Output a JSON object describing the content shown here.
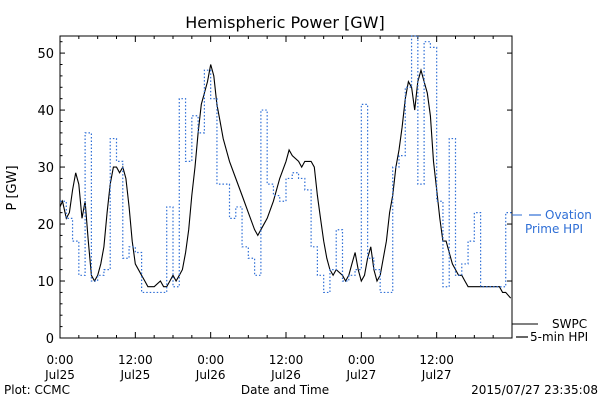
{
  "chart_data": {
    "type": "line",
    "title": "Hemispheric Power [GW]",
    "ylabel": "P [GW]",
    "xlabel": "Date and Time",
    "ylim": [
      0,
      53
    ],
    "xlim_hours": [
      0,
      72
    ],
    "yticks": [
      0,
      10,
      20,
      30,
      40,
      50
    ],
    "xticks": [
      {
        "hour": 0,
        "time": "0:00",
        "date": "Jul25"
      },
      {
        "hour": 12,
        "time": "12:00",
        "date": "Jul25"
      },
      {
        "hour": 24,
        "time": "0:00",
        "date": "Jul26"
      },
      {
        "hour": 36,
        "time": "12:00",
        "date": "Jul26"
      },
      {
        "hour": 48,
        "time": "0:00",
        "date": "Jul27"
      },
      {
        "hour": 60,
        "time": "12:00",
        "date": "Jul27"
      }
    ],
    "series": [
      {
        "name": "SWPC 5-min HPI",
        "legend_lines": [
          "SWPC",
          "5-min HPI"
        ],
        "color": "#000000",
        "style": "solid",
        "points": [
          [
            0,
            23
          ],
          [
            0.4,
            24
          ],
          [
            1,
            21
          ],
          [
            1.5,
            22
          ],
          [
            2,
            26
          ],
          [
            2.5,
            29
          ],
          [
            3,
            27
          ],
          [
            3.5,
            21
          ],
          [
            4,
            24
          ],
          [
            4.5,
            17
          ],
          [
            5,
            11
          ],
          [
            5.5,
            10
          ],
          [
            6,
            11
          ],
          [
            6.5,
            13
          ],
          [
            7,
            16
          ],
          [
            7.5,
            22
          ],
          [
            8,
            27
          ],
          [
            8.5,
            30
          ],
          [
            9,
            30
          ],
          [
            9.5,
            29
          ],
          [
            10,
            30
          ],
          [
            10.5,
            28
          ],
          [
            11,
            23
          ],
          [
            11.5,
            17
          ],
          [
            12,
            13
          ],
          [
            13,
            11
          ],
          [
            13.5,
            10
          ],
          [
            14,
            9
          ],
          [
            15,
            9
          ],
          [
            16,
            10
          ],
          [
            16.5,
            9
          ],
          [
            17,
            9
          ],
          [
            17.5,
            10
          ],
          [
            18,
            11
          ],
          [
            18.5,
            10
          ],
          [
            19,
            11
          ],
          [
            19.5,
            12
          ],
          [
            20,
            15
          ],
          [
            20.5,
            19
          ],
          [
            21,
            25
          ],
          [
            21.5,
            30
          ],
          [
            22,
            36
          ],
          [
            22.5,
            41
          ],
          [
            23,
            43
          ],
          [
            23.5,
            45
          ],
          [
            24,
            48
          ],
          [
            24.5,
            46
          ],
          [
            25,
            41
          ],
          [
            25.5,
            38
          ],
          [
            26,
            35
          ],
          [
            27,
            31
          ],
          [
            28,
            28
          ],
          [
            29,
            25
          ],
          [
            30,
            22
          ],
          [
            31,
            19
          ],
          [
            31.5,
            18
          ],
          [
            32,
            19
          ],
          [
            33,
            21
          ],
          [
            34,
            24
          ],
          [
            35,
            28
          ],
          [
            36,
            31
          ],
          [
            36.5,
            33
          ],
          [
            37,
            32
          ],
          [
            38,
            31
          ],
          [
            38.5,
            30
          ],
          [
            39,
            31
          ],
          [
            40,
            31
          ],
          [
            40.5,
            30
          ],
          [
            41,
            25
          ],
          [
            41.5,
            21
          ],
          [
            42,
            17
          ],
          [
            42.5,
            14
          ],
          [
            43,
            12
          ],
          [
            43.5,
            11
          ],
          [
            44,
            12
          ],
          [
            45,
            11
          ],
          [
            45.5,
            10
          ],
          [
            46,
            11
          ],
          [
            46.5,
            13
          ],
          [
            47,
            15
          ],
          [
            47.5,
            12
          ],
          [
            48,
            10
          ],
          [
            48.5,
            11
          ],
          [
            49,
            14
          ],
          [
            49.5,
            16
          ],
          [
            50,
            12
          ],
          [
            50.5,
            10
          ],
          [
            51,
            11
          ],
          [
            51.5,
            14
          ],
          [
            52,
            17
          ],
          [
            52.5,
            22
          ],
          [
            53,
            25
          ],
          [
            53.5,
            30
          ],
          [
            54,
            33
          ],
          [
            54.5,
            37
          ],
          [
            55,
            42
          ],
          [
            55.5,
            45
          ],
          [
            56,
            44
          ],
          [
            56.5,
            40
          ],
          [
            57,
            45
          ],
          [
            57.5,
            47
          ],
          [
            58,
            45
          ],
          [
            58.5,
            43
          ],
          [
            59,
            39
          ],
          [
            59.5,
            31
          ],
          [
            60,
            26
          ],
          [
            60.5,
            21
          ],
          [
            61,
            17
          ],
          [
            61.5,
            17
          ],
          [
            62,
            15
          ],
          [
            62.5,
            13
          ],
          [
            63,
            12
          ],
          [
            63.5,
            11
          ],
          [
            64,
            11
          ],
          [
            64.5,
            10
          ],
          [
            65,
            9
          ],
          [
            66,
            9
          ],
          [
            67,
            9
          ],
          [
            68,
            9
          ],
          [
            69,
            9
          ],
          [
            70,
            9
          ],
          [
            70.5,
            8
          ],
          [
            71,
            8
          ],
          [
            71.8,
            7
          ]
        ]
      },
      {
        "name": "Ovation Prime HPI",
        "legend_lines": [
          "Ovation",
          "Prime HPI"
        ],
        "color": "#2f6fd6",
        "style": "dotted-step",
        "points": [
          [
            0,
            24
          ],
          [
            1,
            21
          ],
          [
            2,
            17
          ],
          [
            3,
            11
          ],
          [
            4,
            36
          ],
          [
            5,
            10
          ],
          [
            6,
            11
          ],
          [
            7,
            12
          ],
          [
            8,
            35
          ],
          [
            9,
            31
          ],
          [
            10,
            14
          ],
          [
            11,
            16
          ],
          [
            12,
            15
          ],
          [
            13,
            8
          ],
          [
            14,
            8
          ],
          [
            15,
            8
          ],
          [
            16,
            8
          ],
          [
            17,
            23
          ],
          [
            18,
            9
          ],
          [
            19,
            42
          ],
          [
            20,
            31
          ],
          [
            21,
            39
          ],
          [
            22,
            36
          ],
          [
            23,
            47
          ],
          [
            24,
            42
          ],
          [
            25,
            27
          ],
          [
            26,
            27
          ],
          [
            27,
            21
          ],
          [
            28,
            23
          ],
          [
            29,
            16
          ],
          [
            30,
            14
          ],
          [
            31,
            11
          ],
          [
            32,
            40
          ],
          [
            33,
            27
          ],
          [
            34,
            25
          ],
          [
            35,
            24
          ],
          [
            36,
            28
          ],
          [
            37,
            29
          ],
          [
            38,
            28
          ],
          [
            39,
            26
          ],
          [
            40,
            16
          ],
          [
            41,
            11
          ],
          [
            42,
            8
          ],
          [
            43,
            12
          ],
          [
            44,
            19
          ],
          [
            45,
            10
          ],
          [
            46,
            11
          ],
          [
            47,
            12
          ],
          [
            48,
            41
          ],
          [
            49,
            14
          ],
          [
            50,
            12
          ],
          [
            51,
            8
          ],
          [
            52,
            8
          ],
          [
            53,
            30
          ],
          [
            54,
            32
          ],
          [
            55,
            44
          ],
          [
            56,
            53
          ],
          [
            57,
            27
          ],
          [
            58,
            52
          ],
          [
            59,
            51
          ],
          [
            60,
            24
          ],
          [
            61,
            9
          ],
          [
            62,
            35
          ],
          [
            63,
            11
          ],
          [
            64,
            13
          ],
          [
            65,
            17
          ],
          [
            66,
            22
          ],
          [
            67,
            9
          ],
          [
            68,
            9
          ],
          [
            69,
            9
          ],
          [
            70,
            9
          ],
          [
            71,
            22
          ],
          [
            72,
            22
          ]
        ]
      }
    ]
  },
  "footer": {
    "left": "Plot: CCMC",
    "right": "2015/07/27 23:35:08"
  }
}
